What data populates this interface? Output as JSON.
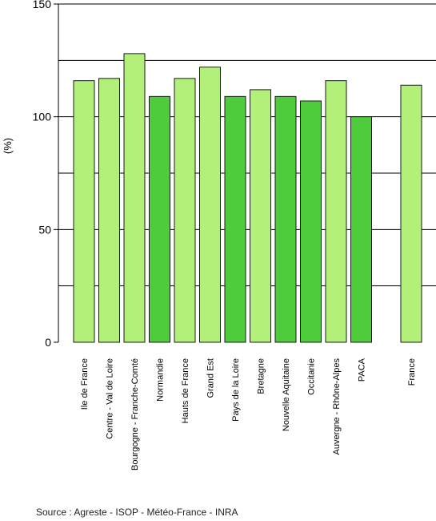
{
  "chart_data": {
    "type": "bar",
    "ylabel": "(%)",
    "ylim": [
      0,
      150
    ],
    "yticks": [
      0,
      50,
      100,
      150
    ],
    "grid": "horizontal",
    "reference_line": 125,
    "categories": [
      "Ile de France",
      "Centre - Val de Loire",
      "Bourgogne - Franche-Comté",
      "Normandie",
      "Hauts de France",
      "Grand Est",
      "Pays de la Loire",
      "Bretagne",
      "Nouvelle Aquitaine",
      "Occitanie",
      "Auvergne - Rhône-Alpes",
      "PACA",
      "France"
    ],
    "values": [
      116,
      117,
      128,
      109,
      117,
      122,
      109,
      112,
      109,
      107,
      116,
      100,
      114
    ],
    "fills": [
      "light",
      "light",
      "light",
      "dark",
      "light",
      "light",
      "dark",
      "light",
      "dark",
      "dark",
      "light",
      "dark",
      "light"
    ],
    "colors": {
      "light": "#b3f07a",
      "dark": "#4fcc3c",
      "outline": "#1a1a1a",
      "grid": "#000000"
    }
  },
  "source": "Source : Agreste - ISOP - Météo-France - INRA"
}
